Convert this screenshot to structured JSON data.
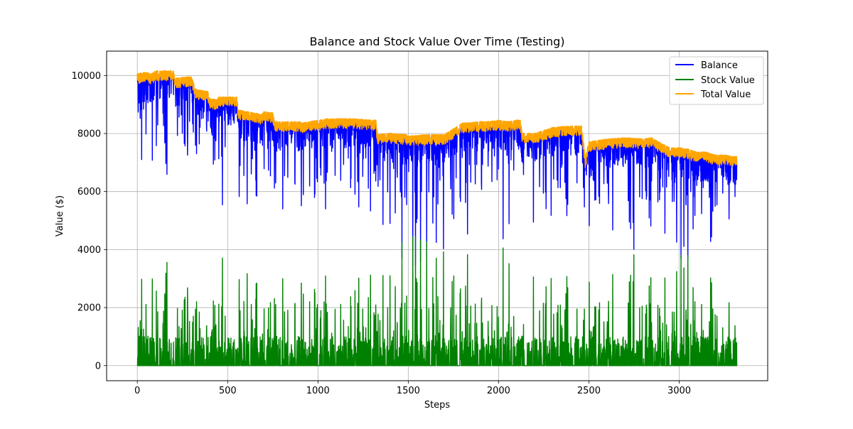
{
  "chart_data": {
    "type": "line",
    "title": "Balance and Stock Value Over Time (Testing)",
    "xlabel": "Steps",
    "ylabel": "Value ($)",
    "xlim": [
      -170,
      3490
    ],
    "ylim": [
      -520,
      10840
    ],
    "xticks": [
      0,
      500,
      1000,
      1500,
      2000,
      2500,
      3000
    ],
    "xtick_labels": [
      "0",
      "500",
      "1000",
      "1500",
      "2000",
      "2500",
      "3000"
    ],
    "yticks": [
      0,
      2000,
      4000,
      6000,
      8000,
      10000
    ],
    "ytick_labels": [
      "0",
      "2000",
      "4000",
      "6000",
      "8000",
      "10000"
    ],
    "grid": true,
    "legend_position": "top-right",
    "n_steps": 3320,
    "series": [
      {
        "name": "Balance",
        "color": "#0000ff",
        "envelope": {
          "x": [
            0,
            40,
            80,
            100,
            200,
            210,
            300,
            320,
            330,
            390,
            400,
            440,
            450,
            550,
            560,
            690,
            700,
            750,
            760,
            900,
            910,
            1050,
            1200,
            1300,
            1320,
            1330,
            1400,
            1490,
            1500,
            1600,
            1700,
            1800,
            1900,
            1950,
            2000,
            2050,
            2100,
            2120,
            2130,
            2200,
            2300,
            2400,
            2460,
            2480,
            2500,
            2600,
            2700,
            2800,
            2850,
            2900,
            2950,
            3000,
            3050,
            3100,
            3150,
            3200,
            3250,
            3300,
            3320
          ],
          "y": [
            10050,
            10100,
            10050,
            10150,
            10150,
            9900,
            9950,
            9550,
            9500,
            9450,
            9200,
            9150,
            9250,
            9250,
            8800,
            8650,
            8750,
            8700,
            8400,
            8400,
            8350,
            8500,
            8500,
            8450,
            8450,
            7950,
            8000,
            7950,
            7900,
            7950,
            7950,
            8350,
            8400,
            8400,
            8450,
            8400,
            8450,
            8450,
            8000,
            8000,
            8200,
            8250,
            8250,
            7150,
            7700,
            7800,
            7850,
            7800,
            7850,
            7650,
            7500,
            7500,
            7450,
            7350,
            7350,
            7250,
            7250,
            7200,
            7200
          ]
        }
      },
      {
        "name": "Stock Value",
        "color": "#008000"
      },
      {
        "name": "Total Value",
        "color": "#ffa500"
      }
    ]
  }
}
